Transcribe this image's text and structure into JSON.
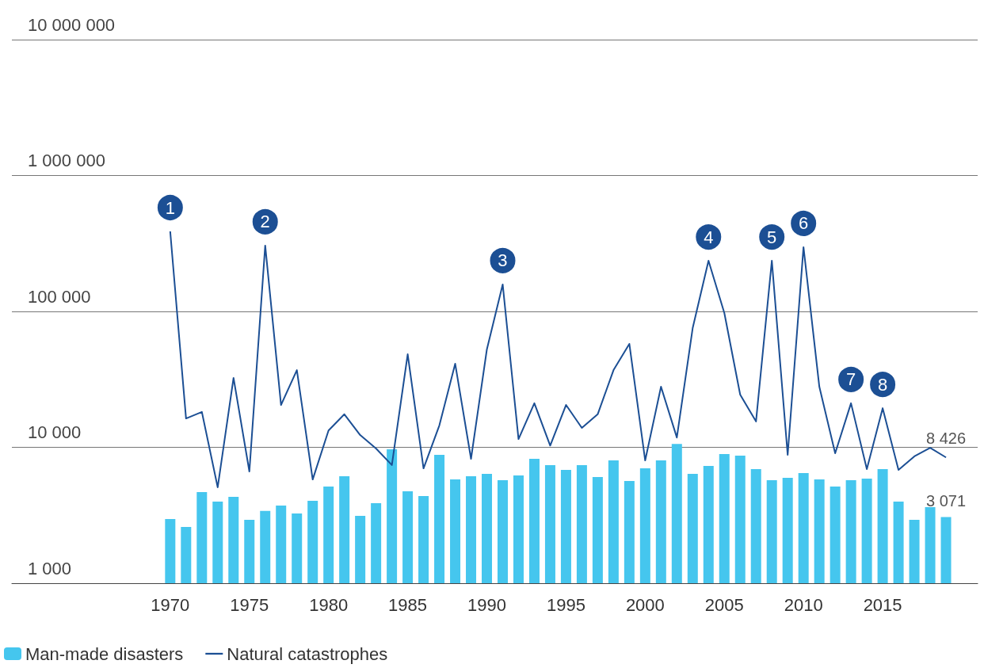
{
  "chart_data": {
    "type": "bar",
    "x": [
      1970,
      1971,
      1972,
      1973,
      1974,
      1975,
      1976,
      1977,
      1978,
      1979,
      1980,
      1981,
      1982,
      1983,
      1984,
      1985,
      1986,
      1987,
      1988,
      1989,
      1990,
      1991,
      1992,
      1993,
      1994,
      1995,
      1996,
      1997,
      1998,
      1999,
      2000,
      2001,
      2002,
      2003,
      2004,
      2005,
      2006,
      2007,
      2008,
      2009,
      2010,
      2011,
      2012,
      2013,
      2014,
      2015,
      2016,
      2017,
      2018,
      2019
    ],
    "xlim": [
      1960,
      2021
    ],
    "xticks": [
      1970,
      1975,
      1980,
      1985,
      1990,
      1995,
      2000,
      2005,
      2010,
      2015
    ],
    "series": [
      {
        "name": "Man-made disasters",
        "color": "#45c6ee",
        "values": [
          2970,
          2590,
          4690,
          3990,
          4320,
          2930,
          3400,
          3730,
          3260,
          4040,
          5150,
          6130,
          3130,
          3880,
          9670,
          4750,
          4380,
          8800,
          5800,
          6130,
          6380,
          5730,
          6210,
          8230,
          7390,
          6820,
          7390,
          6040,
          8010,
          5650,
          7000,
          8010,
          10600,
          6380,
          7290,
          8920,
          8690,
          6910,
          5730,
          5970,
          6460,
          5800,
          5150,
          5730,
          5890,
          6910,
          3990,
          2930,
          3630,
          3071
        ],
        "value_labels": [
          null,
          null,
          null,
          null,
          null,
          null,
          null,
          null,
          null,
          null,
          null,
          null,
          null,
          null,
          null,
          null,
          null,
          null,
          null,
          null,
          null,
          null,
          null,
          null,
          null,
          null,
          null,
          null,
          null,
          null,
          null,
          null,
          null,
          null,
          null,
          null,
          null,
          null,
          null,
          null,
          null,
          null,
          null,
          null,
          null,
          null,
          null,
          null,
          null,
          "3 071"
        ]
      },
      {
        "name": "Natural catastrophes",
        "type": "line",
        "color": "#1c4f94",
        "values": [
          388000,
          16300,
          18200,
          5080,
          32400,
          6640,
          305000,
          20500,
          37000,
          5800,
          13300,
          17500,
          12300,
          9800,
          7400,
          48400,
          7000,
          14500,
          41200,
          8230,
          52500,
          158000,
          11500,
          21100,
          10300,
          20500,
          13900,
          17500,
          37000,
          57700,
          8010,
          27900,
          11800,
          75400,
          236000,
          97300,
          24400,
          15500,
          236000,
          8800,
          297000,
          27900,
          9040,
          21100,
          6910,
          19400,
          6820,
          8570,
          9930,
          8426
        ],
        "value_labels": [
          null,
          null,
          null,
          null,
          null,
          null,
          null,
          null,
          null,
          null,
          null,
          null,
          null,
          null,
          null,
          null,
          null,
          null,
          null,
          null,
          null,
          null,
          null,
          null,
          null,
          null,
          null,
          null,
          null,
          null,
          null,
          null,
          null,
          null,
          null,
          null,
          null,
          null,
          null,
          null,
          null,
          null,
          null,
          null,
          null,
          null,
          null,
          null,
          null,
          "8 426"
        ]
      }
    ],
    "log": "y",
    "ylim": [
      1000,
      10000000
    ],
    "yticks": [
      {
        "value": 1000,
        "label": "1 000"
      },
      {
        "value": 10000,
        "label": "10 000"
      },
      {
        "value": 100000,
        "label": "100 000"
      },
      {
        "value": 1000000,
        "label": "1 000 000"
      },
      {
        "value": 10000000,
        "label": "10 000 000"
      }
    ],
    "grid": "y",
    "legend": "bottom left",
    "marker": "none",
    "annotations": [
      {
        "text": "1",
        "x": 1970,
        "y": 388000
      },
      {
        "text": "2",
        "x": 1976,
        "y": 305000
      },
      {
        "text": "3",
        "x": 1991,
        "y": 158000
      },
      {
        "text": "4",
        "x": 2004,
        "y": 236000
      },
      {
        "text": "5",
        "x": 2008,
        "y": 236000
      },
      {
        "text": "6",
        "x": 2010,
        "y": 297000
      },
      {
        "text": "7",
        "x": 2013,
        "y": 21100
      },
      {
        "text": "8",
        "x": 2015,
        "y": 19400
      }
    ]
  }
}
